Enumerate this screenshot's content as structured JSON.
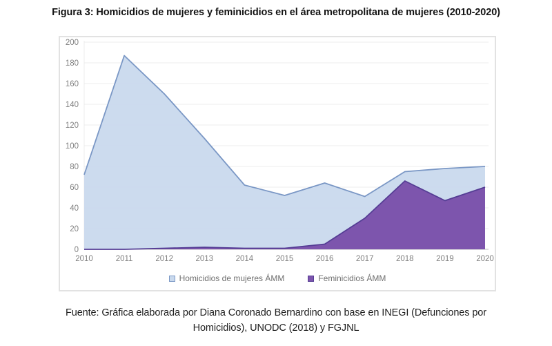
{
  "title": "Figura 3: Homicidios de mujeres y feminicidios en el área metropolitana de mujeres (2010-2020)",
  "source": "Fuente: Gráfica elaborada por Diana Coronado Bernardino con base en INEGI (Defunciones por Homicidios), UNODC (2018) y FGJNL",
  "colors": {
    "grid": "#ececec",
    "axis": "#bdbdbd",
    "tick_label": "#7f7f7f",
    "border": "#e2e2e2"
  },
  "chart_data": {
    "type": "area",
    "title": "Figura 3: Homicidios de mujeres y feminicidios en el área metropolitana de mujeres (2010-2020)",
    "x": [
      "2010",
      "2011",
      "2012",
      "2013",
      "2014",
      "2015",
      "2016",
      "2017",
      "2018",
      "2019",
      "2020"
    ],
    "series": [
      {
        "name": "Homicidios de mujeres ÁMM",
        "values": [
          72,
          187,
          150,
          107,
          62,
          52,
          64,
          51,
          75,
          78,
          80
        ],
        "fill": "#c9d9ed",
        "line": "#7a97c5"
      },
      {
        "name": "Feminicidios ÁMM",
        "values": [
          0,
          0,
          1,
          2,
          1,
          1,
          5,
          30,
          66,
          47,
          60
        ],
        "fill": "#7d55ad",
        "line": "#553d94"
      }
    ],
    "xlabel": "",
    "ylabel": "",
    "ylim": [
      0,
      200
    ],
    "ytick_step": 20,
    "grid": true,
    "legend_position": "bottom"
  }
}
